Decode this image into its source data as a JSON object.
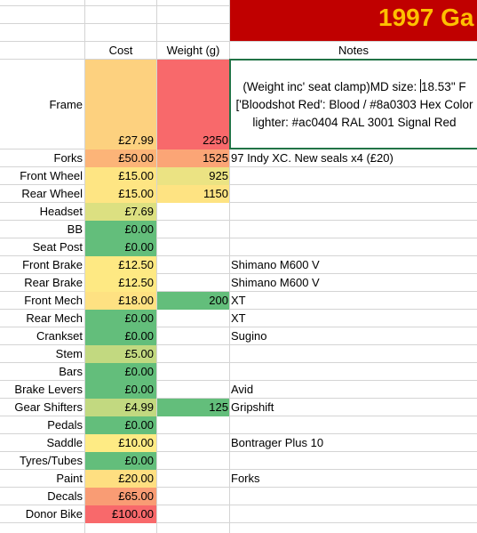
{
  "banner": {
    "title": "1997 Ga"
  },
  "headers": {
    "cost": "Cost",
    "weight": "Weight (g)",
    "notes": "Notes"
  },
  "frame": {
    "label": "Frame",
    "cost": "£27.99",
    "weight": "2250",
    "cost_color": "#fdd17f",
    "weight_color": "#f8696b",
    "notes_lines": [
      "(Weight inc' seat clamp)MD size: ",
      "18.53\" F",
      "['Bloodshot Red': Blood / #8a0303 Hex Color",
      "lighter: #ac0404 RAL 3001 Signal Red"
    ]
  },
  "rows": [
    {
      "label": "Forks",
      "cost": "£50.00",
      "weight": "1525",
      "note": "97 Indy XC. New seals x4 (£20)",
      "cost_color": "#fcb478",
      "weight_color": "#fba576"
    },
    {
      "label": "Front Wheel",
      "cost": "£15.00",
      "weight": "925",
      "note": "",
      "cost_color": "#fee583",
      "weight_color": "#ebe383"
    },
    {
      "label": "Rear Wheel",
      "cost": "£15.00",
      "weight": "1150",
      "note": "",
      "cost_color": "#fee583",
      "weight_color": "#fee382"
    },
    {
      "label": "Headset",
      "cost": "£7.69",
      "weight": "",
      "note": "",
      "cost_color": "#dce081",
      "weight_color": ""
    },
    {
      "label": "BB",
      "cost": "£0.00",
      "weight": "",
      "note": "",
      "cost_color": "#63be7b",
      "weight_color": ""
    },
    {
      "label": "Seat Post",
      "cost": "£0.00",
      "weight": "",
      "note": "",
      "cost_color": "#63be7b",
      "weight_color": ""
    },
    {
      "label": "Front Brake",
      "cost": "£12.50",
      "weight": "",
      "note": "Shimano M600 V",
      "cost_color": "#fee983",
      "weight_color": ""
    },
    {
      "label": "Rear Brake",
      "cost": "£12.50",
      "weight": "",
      "note": "Shimano M600 V",
      "cost_color": "#fee983",
      "weight_color": ""
    },
    {
      "label": "Front Mech",
      "cost": "£18.00",
      "weight": "200",
      "note": "XT",
      "cost_color": "#fee182",
      "weight_color": "#63be7b"
    },
    {
      "label": "Rear Mech",
      "cost": "£0.00",
      "weight": "",
      "note": "XT",
      "cost_color": "#63be7b",
      "weight_color": ""
    },
    {
      "label": "Crankset",
      "cost": "£0.00",
      "weight": "",
      "note": "Sugino",
      "cost_color": "#63be7b",
      "weight_color": ""
    },
    {
      "label": "Stem",
      "cost": "£5.00",
      "weight": "",
      "note": "",
      "cost_color": "#c2d980",
      "weight_color": ""
    },
    {
      "label": "Bars",
      "cost": "£0.00",
      "weight": "",
      "note": "",
      "cost_color": "#63be7b",
      "weight_color": ""
    },
    {
      "label": "Brake Levers",
      "cost": "£0.00",
      "weight": "",
      "note": "Avid",
      "cost_color": "#63be7b",
      "weight_color": ""
    },
    {
      "label": "Gear Shifters",
      "cost": "£4.99",
      "weight": "125",
      "note": "Gripshift",
      "cost_color": "#c2d980",
      "weight_color": "#63be7b"
    },
    {
      "label": "Pedals",
      "cost": "£0.00",
      "weight": "",
      "note": "",
      "cost_color": "#63be7b",
      "weight_color": ""
    },
    {
      "label": "Saddle",
      "cost": "£10.00",
      "weight": "",
      "note": "Bontrager Plus 10",
      "cost_color": "#feeb84",
      "weight_color": ""
    },
    {
      "label": "Tyres/Tubes",
      "cost": "£0.00",
      "weight": "",
      "note": "",
      "cost_color": "#63be7b",
      "weight_color": ""
    },
    {
      "label": "Paint",
      "cost": "£20.00",
      "weight": "",
      "note": "Forks",
      "cost_color": "#fedf81",
      "weight_color": ""
    },
    {
      "label": "Decals",
      "cost": "£65.00",
      "weight": "",
      "note": "",
      "cost_color": "#f99c74",
      "weight_color": ""
    },
    {
      "label": "Donor Bike",
      "cost": "£100.00",
      "weight": "",
      "note": "",
      "cost_color": "#f8696b",
      "weight_color": ""
    }
  ]
}
